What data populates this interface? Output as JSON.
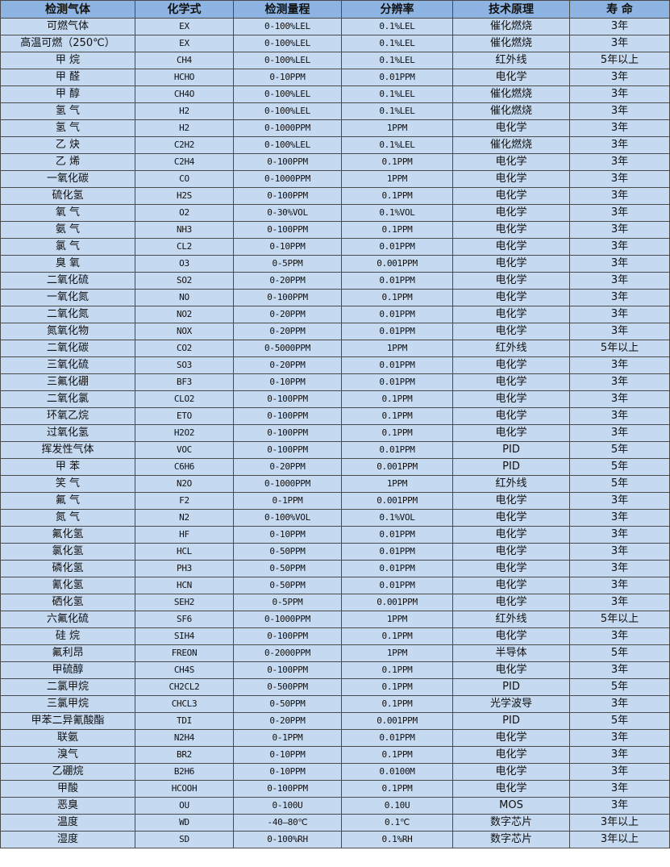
{
  "table": {
    "headers": [
      "检测气体",
      "化学式",
      "检测量程",
      "分辨率",
      "技术原理",
      "寿 命"
    ],
    "rows": [
      [
        "可燃气体",
        "EX",
        "0-100%LEL",
        "0.1%LEL",
        "催化燃烧",
        "3年"
      ],
      [
        "高温可燃（250℃）",
        "EX",
        "0-100%LEL",
        "0.1%LEL",
        "催化燃烧",
        "3年"
      ],
      [
        "甲 烷",
        "CH4",
        "0-100%LEL",
        "0.1%LEL",
        "红外线",
        "5年以上"
      ],
      [
        "甲 醛",
        "HCHO",
        "0-10PPM",
        "0.01PPM",
        "电化学",
        "3年"
      ],
      [
        "甲 醇",
        "CH4O",
        "0-100%LEL",
        "0.1%LEL",
        "催化燃烧",
        "3年"
      ],
      [
        "氢 气",
        "H2",
        "0-100%LEL",
        "0.1%LEL",
        "催化燃烧",
        "3年"
      ],
      [
        "氢 气",
        "H2",
        "0-1000PPM",
        "1PPM",
        "电化学",
        "3年"
      ],
      [
        "乙 炔",
        "C2H2",
        "0-100%LEL",
        "0.1%LEL",
        "催化燃烧",
        "3年"
      ],
      [
        "乙 烯",
        "C2H4",
        "0-100PPM",
        "0.1PPM",
        "电化学",
        "3年"
      ],
      [
        "一氧化碳",
        "CO",
        "0-1000PPM",
        "1PPM",
        "电化学",
        "3年"
      ],
      [
        "硫化氢",
        "H2S",
        "0-100PPM",
        "0.1PPM",
        "电化学",
        "3年"
      ],
      [
        "氧 气",
        "O2",
        "0-30%VOL",
        "0.1%VOL",
        "电化学",
        "3年"
      ],
      [
        "氨 气",
        "NH3",
        "0-100PPM",
        "0.1PPM",
        "电化学",
        "3年"
      ],
      [
        "氯 气",
        "CL2",
        "0-10PPM",
        "0.01PPM",
        "电化学",
        "3年"
      ],
      [
        "臭 氧",
        "O3",
        "0-5PPM",
        "0.001PPM",
        "电化学",
        "3年"
      ],
      [
        "二氧化硫",
        "SO2",
        "0-20PPM",
        "0.01PPM",
        "电化学",
        "3年"
      ],
      [
        "一氧化氮",
        "NO",
        "0-100PPM",
        "0.1PPM",
        "电化学",
        "3年"
      ],
      [
        "二氧化氮",
        "NO2",
        "0-20PPM",
        "0.01PPM",
        "电化学",
        "3年"
      ],
      [
        "氮氧化物",
        "NOX",
        "0-20PPM",
        "0.01PPM",
        "电化学",
        "3年"
      ],
      [
        "二氧化碳",
        "CO2",
        "0-5000PPM",
        "1PPM",
        "红外线",
        "5年以上"
      ],
      [
        "三氧化硫",
        "SO3",
        "0-20PPM",
        "0.01PPM",
        "电化学",
        "3年"
      ],
      [
        "三氟化硼",
        "BF3",
        "0-10PPM",
        "0.01PPM",
        "电化学",
        "3年"
      ],
      [
        "二氧化氯",
        "CLO2",
        "0-100PPM",
        "0.1PPM",
        "电化学",
        "3年"
      ],
      [
        "环氧乙烷",
        "ETO",
        "0-100PPM",
        "0.1PPM",
        "电化学",
        "3年"
      ],
      [
        "过氧化氢",
        "H2O2",
        "0-100PPM",
        "0.1PPM",
        "电化学",
        "3年"
      ],
      [
        "挥发性气体",
        "VOC",
        "0-100PPM",
        "0.01PPM",
        "PID",
        "5年"
      ],
      [
        "甲 苯",
        "C6H6",
        "0-20PPM",
        "0.001PPM",
        "PID",
        "5年"
      ],
      [
        "笑 气",
        "N2O",
        "0-1000PPM",
        "1PPM",
        "红外线",
        "5年"
      ],
      [
        "氟 气",
        "F2",
        "0-1PPM",
        "0.001PPM",
        "电化学",
        "3年"
      ],
      [
        "氮 气",
        "N2",
        "0-100%VOL",
        "0.1%VOL",
        "电化学",
        "3年"
      ],
      [
        "氟化氢",
        "HF",
        "0-10PPM",
        "0.01PPM",
        "电化学",
        "3年"
      ],
      [
        "氯化氢",
        "HCL",
        "0-50PPM",
        "0.01PPM",
        "电化学",
        "3年"
      ],
      [
        "磷化氢",
        "PH3",
        "0-50PPM",
        "0.01PPM",
        "电化学",
        "3年"
      ],
      [
        "氰化氢",
        "HCN",
        "0-50PPM",
        "0.01PPM",
        "电化学",
        "3年"
      ],
      [
        "硒化氢",
        "SEH2",
        "0-5PPM",
        "0.001PPM",
        "电化学",
        "3年"
      ],
      [
        "六氟化硫",
        "SF6",
        "0-1000PPM",
        "1PPM",
        "红外线",
        "5年以上"
      ],
      [
        "硅 烷",
        "SIH4",
        "0-100PPM",
        "0.1PPM",
        "电化学",
        "3年"
      ],
      [
        "氟利昂",
        "FREON",
        "0-2000PPM",
        "1PPM",
        "半导体",
        "5年"
      ],
      [
        "甲硫醇",
        "CH4S",
        "0-100PPM",
        "0.1PPM",
        "电化学",
        "3年"
      ],
      [
        "二氯甲烷",
        "CH2CL2",
        "0-500PPM",
        "0.1PPM",
        "PID",
        "5年"
      ],
      [
        "三氯甲烷",
        "CHCL3",
        "0-50PPM",
        "0.1PPM",
        "光学波导",
        "3年"
      ],
      [
        "甲苯二异氰酸酯",
        "TDI",
        "0-20PPM",
        "0.001PPM",
        "PID",
        "5年"
      ],
      [
        "联氨",
        "N2H4",
        "0-1PPM",
        "0.01PPM",
        "电化学",
        "3年"
      ],
      [
        "溴气",
        "BR2",
        "0-10PPM",
        "0.1PPM",
        "电化学",
        "3年"
      ],
      [
        "乙硼烷",
        "B2H6",
        "0-10PPM",
        "0.0100M",
        "电化学",
        "3年"
      ],
      [
        "甲酸",
        "HCOOH",
        "0-100PPM",
        "0.1PPM",
        "电化学",
        "3年"
      ],
      [
        "恶臭",
        "OU",
        "0-100U",
        "0.10U",
        "MOS",
        "3年"
      ],
      [
        "温度",
        "WD",
        "-40—80℃",
        "0.1℃",
        "数字芯片",
        "3年以上"
      ],
      [
        "湿度",
        "SD",
        "0-100%RH",
        "0.1%RH",
        "数字芯片",
        "3年以上"
      ]
    ]
  },
  "colors": {
    "header_bg": "#8db4e2",
    "row_bg": "#c5d9f1",
    "border": "#4a4a4a"
  }
}
